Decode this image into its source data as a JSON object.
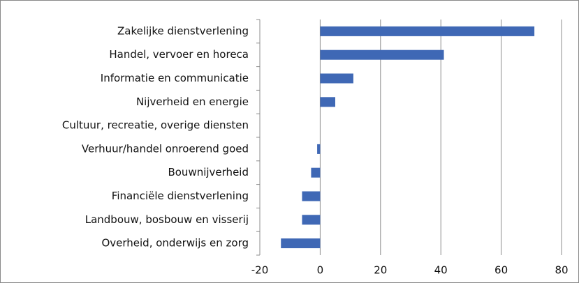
{
  "chart_data": {
    "type": "bar",
    "orientation": "horizontal",
    "categories": [
      "Zakelijke dienstverlening",
      "Handel, vervoer en horeca",
      "Informatie en communicatie",
      "Nijverheid en energie",
      "Cultuur, recreatie, overige diensten",
      "Verhuur/handel onroerend goed",
      "Bouwnijverheid",
      "Financiële dienstverlening",
      "Landbouw, bosbouw en visserij",
      "Overheid, onderwijs en zorg"
    ],
    "values": [
      71,
      41,
      11,
      5,
      0,
      -1,
      -3,
      -6,
      -6,
      -13
    ],
    "color": "#3f68b5",
    "xlim": [
      -20,
      80
    ],
    "xticks": [
      -20,
      0,
      20,
      40,
      60,
      80
    ],
    "grid": true
  }
}
